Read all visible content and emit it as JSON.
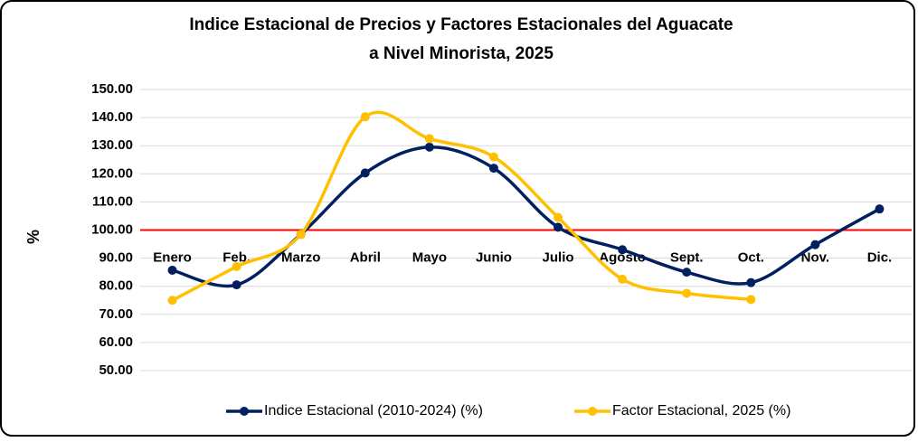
{
  "chart_data": {
    "type": "line",
    "title": [
      "Indice Estacional de Precios y Factores Estacionales del Aguacate",
      "a Nivel Minorista, 2025"
    ],
    "y_label": "%",
    "categories": [
      "Enero",
      "Feb.",
      "Marzo",
      "Abril",
      "Mayo",
      "Junio",
      "Julio",
      "Agosto",
      "Sept.",
      "Oct.",
      "Nov.",
      "Dic."
    ],
    "series": [
      {
        "name": "Indice Estacional (2010-2024) (%)",
        "color": "#002060",
        "values": [
          85.7,
          80.5,
          98.5,
          120.3,
          129.5,
          122,
          101,
          93,
          85,
          81.3,
          94.8,
          107.5
        ]
      },
      {
        "name": "Factor Estacional, 2025 (%)",
        "color": "#FFC000",
        "values": [
          75,
          87,
          98.5,
          140.3,
          132.5,
          126,
          104.5,
          82.5,
          77.5,
          75.3,
          null,
          null
        ]
      }
    ],
    "ylim": [
      50,
      150
    ],
    "yticks": [
      {
        "value": 50,
        "label": "50.00"
      },
      {
        "value": 60,
        "label": "60.00"
      },
      {
        "value": 70,
        "label": "70.00"
      },
      {
        "value": 80,
        "label": "80.00"
      },
      {
        "value": 90,
        "label": "90.00"
      },
      {
        "value": 100,
        "label": "100.00"
      },
      {
        "value": 110,
        "label": "110.00"
      },
      {
        "value": 120,
        "label": "120.00"
      },
      {
        "value": 130,
        "label": "130.00"
      },
      {
        "value": 140,
        "label": "140.00"
      },
      {
        "value": 150,
        "label": "150.00"
      }
    ],
    "grid": true,
    "reference_line": {
      "value": 100,
      "color": "#FF0000"
    },
    "legend": "bottom"
  }
}
